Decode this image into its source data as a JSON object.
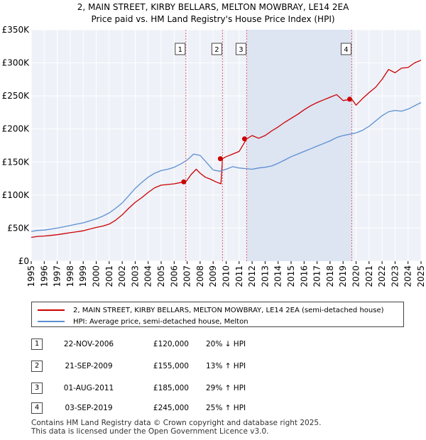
{
  "chart_data": {
    "type": "line",
    "title": "2, MAIN STREET, KIRBY BELLARS, MELTON MOWBRAY, LE14 2EA",
    "subtitle": "Price paid vs. HM Land Registry's House Price Index (HPI)",
    "xlabel": "",
    "ylabel": "",
    "xlim": [
      1995,
      2025
    ],
    "ylim": [
      0,
      350000
    ],
    "x_ticks": [
      "1995",
      "1996",
      "1997",
      "1998",
      "1999",
      "2000",
      "2001",
      "2002",
      "2003",
      "2004",
      "2005",
      "2006",
      "2007",
      "2008",
      "2009",
      "2010",
      "2011",
      "2012",
      "2013",
      "2014",
      "2015",
      "2016",
      "2017",
      "2018",
      "2019",
      "2020",
      "2021",
      "2022",
      "2023",
      "2024",
      "2025"
    ],
    "y_ticks": [
      {
        "value": 0,
        "label": "£0"
      },
      {
        "value": 50000,
        "label": "£50K"
      },
      {
        "value": 100000,
        "label": "£100K"
      },
      {
        "value": 150000,
        "label": "£150K"
      },
      {
        "value": 200000,
        "label": "£200K"
      },
      {
        "value": 250000,
        "label": "£250K"
      },
      {
        "value": 300000,
        "label": "£300K"
      },
      {
        "value": 350000,
        "label": "£350K"
      }
    ],
    "grid": true,
    "series": [
      {
        "name": "2, MAIN STREET, KIRBY BELLARS, MELTON MOWBRAY, LE14 2EA (semi-detached house)",
        "color": "#cc0000",
        "x": [
          1995.0,
          1995.5,
          1996.0,
          1996.5,
          1997.0,
          1997.5,
          1998.0,
          1998.5,
          1999.0,
          1999.5,
          2000.0,
          2000.5,
          2001.0,
          2001.5,
          2002.0,
          2002.5,
          2003.0,
          2003.5,
          2004.0,
          2004.5,
          2005.0,
          2005.5,
          2006.0,
          2006.5,
          2006.9,
          2007.3,
          2007.7,
          2008.0,
          2008.4,
          2008.8,
          2009.2,
          2009.6,
          2009.72,
          2010.0,
          2010.5,
          2011.0,
          2011.58,
          2012.0,
          2012.5,
          2013.0,
          2013.5,
          2014.0,
          2014.5,
          2015.0,
          2015.5,
          2016.0,
          2016.5,
          2017.0,
          2017.5,
          2018.0,
          2018.5,
          2019.0,
          2019.67,
          2020.0,
          2020.5,
          2021.0,
          2021.5,
          2022.0,
          2022.5,
          2023.0,
          2023.5,
          2024.0,
          2024.5,
          2025.0
        ],
        "values": [
          36000,
          37500,
          38000,
          39000,
          40000,
          41500,
          43000,
          44500,
          46000,
          48500,
          51000,
          53000,
          56000,
          62000,
          70000,
          80000,
          89000,
          96000,
          104000,
          111000,
          115000,
          116000,
          117000,
          119000,
          120000,
          131000,
          139000,
          133000,
          127000,
          124000,
          120000,
          117000,
          155000,
          158000,
          162000,
          166000,
          185000,
          190000,
          186000,
          190000,
          197000,
          203000,
          210000,
          216000,
          222000,
          229000,
          235000,
          240000,
          244000,
          248000,
          252000,
          243000,
          245000,
          236000,
          246000,
          255000,
          263000,
          275000,
          290000,
          285000,
          292000,
          293000,
          300000,
          304000
        ]
      },
      {
        "name": "HPI: Average price, semi-detached house, Melton",
        "color": "#5b8fd0",
        "x": [
          1995.0,
          1995.5,
          1996.0,
          1996.5,
          1997.0,
          1997.5,
          1998.0,
          1998.5,
          1999.0,
          1999.5,
          2000.0,
          2000.5,
          2001.0,
          2001.5,
          2002.0,
          2002.5,
          2003.0,
          2003.5,
          2004.0,
          2004.5,
          2005.0,
          2005.5,
          2006.0,
          2006.5,
          2007.0,
          2007.5,
          2008.0,
          2008.5,
          2009.0,
          2009.5,
          2010.0,
          2010.5,
          2011.0,
          2011.5,
          2012.0,
          2012.5,
          2013.0,
          2013.5,
          2014.0,
          2014.5,
          2015.0,
          2015.5,
          2016.0,
          2016.5,
          2017.0,
          2017.5,
          2018.0,
          2018.5,
          2019.0,
          2019.5,
          2020.0,
          2020.5,
          2021.0,
          2021.5,
          2022.0,
          2022.5,
          2023.0,
          2023.5,
          2024.0,
          2024.5,
          2025.0
        ],
        "values": [
          45000,
          46500,
          47000,
          48500,
          50000,
          52000,
          54000,
          56000,
          58000,
          61000,
          64000,
          68000,
          73000,
          80000,
          88000,
          99000,
          110000,
          119000,
          127000,
          133000,
          137000,
          139000,
          142000,
          147000,
          153000,
          162000,
          160000,
          149000,
          138000,
          136000,
          139000,
          143000,
          141000,
          140000,
          139000,
          141000,
          142000,
          144000,
          148000,
          153000,
          158000,
          162000,
          166000,
          170000,
          174000,
          178000,
          182000,
          187000,
          190000,
          192000,
          194000,
          198000,
          204000,
          212000,
          220000,
          226000,
          228000,
          227000,
          230000,
          235000,
          240000
        ]
      }
    ],
    "annotations": [
      {
        "label": "1",
        "x": 2006.9,
        "value": 120000
      },
      {
        "label": "2",
        "x": 2009.72,
        "value": 155000
      },
      {
        "label": "3",
        "x": 2011.58,
        "value": 185000
      },
      {
        "label": "4",
        "x": 2019.67,
        "value": 245000
      }
    ]
  },
  "legend": {
    "property_label": "2, MAIN STREET, KIRBY BELLARS, MELTON MOWBRAY, LE14 2EA (semi-detached house)",
    "hpi_label": "HPI: Average price, semi-detached house, Melton",
    "property_color": "#cc0000",
    "hpi_color": "#5b8fd0"
  },
  "sales": [
    {
      "num": "1",
      "date": "22-NOV-2006",
      "price": "£120,000",
      "hpi": "20% ↓ HPI"
    },
    {
      "num": "2",
      "date": "21-SEP-2009",
      "price": "£155,000",
      "hpi": "13% ↑ HPI"
    },
    {
      "num": "3",
      "date": "01-AUG-2011",
      "price": "£185,000",
      "hpi": "29% ↑ HPI"
    },
    {
      "num": "4",
      "date": "03-SEP-2019",
      "price": "£245,000",
      "hpi": "25% ↑ HPI"
    }
  ],
  "footer": {
    "line1": "Contains HM Land Registry data © Crown copyright and database right 2025.",
    "line2": "This data is licensed under the Open Government Licence v3.0."
  }
}
